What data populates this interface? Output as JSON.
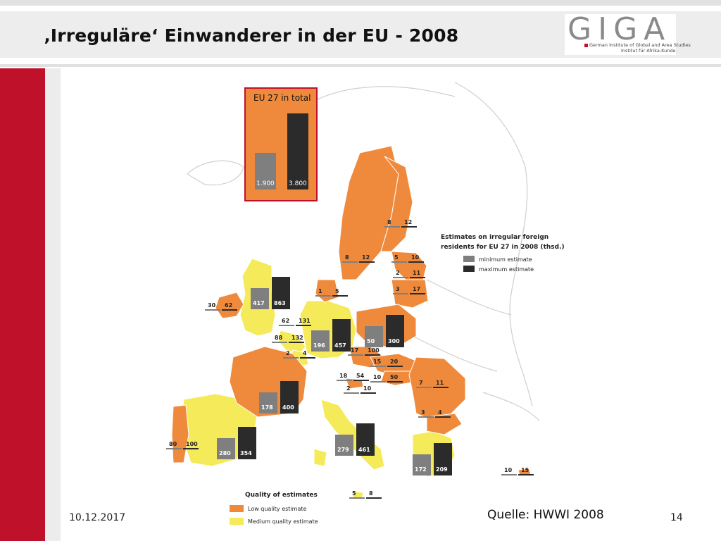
{
  "slide": {
    "title": "‚Irreguläre‘ Einwanderer in der EU - 2008",
    "date": "10.12.2017",
    "source": "Quelle: HWWI 2008",
    "page_number": "14"
  },
  "logo": {
    "letters": "GIGA",
    "line1": "German Institute of Global and Area Studies",
    "line2": "Institut für Afrika-Kunde"
  },
  "colors": {
    "accent_red": "#c0112b",
    "low_quality": "#ef8a3d",
    "medium_quality": "#f5ea5a",
    "min_bar": "#7f7f7f",
    "max_bar": "#2b2b2b"
  },
  "chart_data": {
    "type": "bar",
    "eu_total": {
      "title": "EU 27 in total",
      "minimum": "1.900",
      "maximum": "3.800"
    },
    "legend": {
      "heading": "Estimates on irregular foreign residents for EU 27 in 2008 (thsd.)",
      "minimum": "minimum estimate",
      "maximum": "maximum estimate"
    },
    "quality_legend": {
      "heading": "Quality of estimates",
      "low": "Low quality estimate",
      "medium": "Medium quality estimate"
    },
    "value_labels": [
      {
        "min": "417",
        "max": "863",
        "quality": "medium"
      },
      {
        "min": "30",
        "max": "62",
        "quality": "low"
      },
      {
        "min": "62",
        "max": "131",
        "quality": "medium"
      },
      {
        "min": "88",
        "max": "132",
        "quality": "medium"
      },
      {
        "min": "196",
        "max": "457",
        "quality": "medium"
      },
      {
        "min": "2",
        "max": "4",
        "quality": "medium"
      },
      {
        "min": "1",
        "max": "5",
        "quality": "low"
      },
      {
        "min": "8",
        "max": "12",
        "quality": "low"
      },
      {
        "min": "8",
        "max": "12",
        "quality": "low"
      },
      {
        "min": "5",
        "max": "10",
        "quality": "low"
      },
      {
        "min": "2",
        "max": "11",
        "quality": "low"
      },
      {
        "min": "3",
        "max": "17",
        "quality": "low"
      },
      {
        "min": "50",
        "max": "300",
        "quality": "low"
      },
      {
        "min": "17",
        "max": "100",
        "quality": "low"
      },
      {
        "min": "15",
        "max": "20",
        "quality": "low"
      },
      {
        "min": "18",
        "max": "54",
        "quality": "medium"
      },
      {
        "min": "10",
        "max": "50",
        "quality": "low"
      },
      {
        "min": "2",
        "max": "10",
        "quality": "low"
      },
      {
        "min": "7",
        "max": "11",
        "quality": "low"
      },
      {
        "min": "3",
        "max": "4",
        "quality": "low"
      },
      {
        "min": "178",
        "max": "400",
        "quality": "low"
      },
      {
        "min": "280",
        "max": "354",
        "quality": "medium"
      },
      {
        "min": "80",
        "max": "100",
        "quality": "low"
      },
      {
        "min": "279",
        "max": "461",
        "quality": "medium"
      },
      {
        "min": "172",
        "max": "209",
        "quality": "medium"
      },
      {
        "min": "10",
        "max": "15",
        "quality": "low"
      },
      {
        "min": "5",
        "max": "8",
        "quality": "medium"
      }
    ]
  }
}
